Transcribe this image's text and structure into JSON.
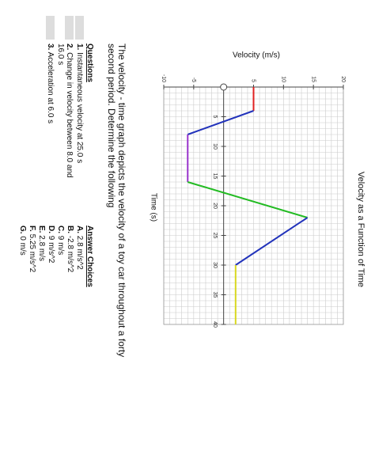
{
  "chart_data": {
    "type": "line",
    "title": "Velocity as a Function of Time",
    "x_label": "Time (s)",
    "y_label": "Velocity (m/s)",
    "series": [
      {
        "color": "#e02020",
        "x": [
          0,
          4
        ],
        "values": [
          5,
          5
        ]
      },
      {
        "color": "#2233bb",
        "x": [
          4,
          8
        ],
        "values": [
          5,
          -6
        ]
      },
      {
        "color": "#9933cc",
        "x": [
          8,
          16
        ],
        "values": [
          -6,
          -6
        ]
      },
      {
        "color": "#22bb22",
        "x": [
          16,
          22
        ],
        "values": [
          -6,
          14
        ]
      },
      {
        "color": "#2233bb",
        "x": [
          22,
          30
        ],
        "values": [
          14,
          2
        ]
      },
      {
        "color": "#d8d820",
        "x": [
          30,
          40
        ],
        "values": [
          2,
          2
        ]
      }
    ],
    "xlim": [
      0,
      40
    ],
    "xticks": [
      5,
      10,
      15,
      20,
      25,
      30,
      35,
      40
    ],
    "ylim": [
      -10,
      20
    ],
    "yticks": [
      -10,
      -5,
      5,
      10,
      15,
      20
    ],
    "grid": true
  },
  "prompt": "The velocity - time graph depicts the velocity of a toy car throughout a forty second period. Determine the following",
  "questions": {
    "header": "Questions",
    "items": [
      {
        "num": "1.",
        "text": "Instantaneous velocity at 25.0 s"
      },
      {
        "num": "2.",
        "text": "Change in velocity between 8.0 and 16.0 s"
      },
      {
        "num": "3.",
        "text": "Acceleration at 6.0 s"
      }
    ]
  },
  "answers": {
    "header": "Answer Choices",
    "items": [
      {
        "letter": "A.",
        "text": "2.8 m/s^2"
      },
      {
        "letter": "B.",
        "text": "-2.8 m/s^2"
      },
      {
        "letter": "C.",
        "text": "9 m/s"
      },
      {
        "letter": "D.",
        "text": "9 m/s^2"
      },
      {
        "letter": "E.",
        "text": "2.8 m/s"
      },
      {
        "letter": "F.",
        "text": "5.25 m/s^2"
      },
      {
        "letter": "G.",
        "text": "0 m/s"
      }
    ]
  }
}
